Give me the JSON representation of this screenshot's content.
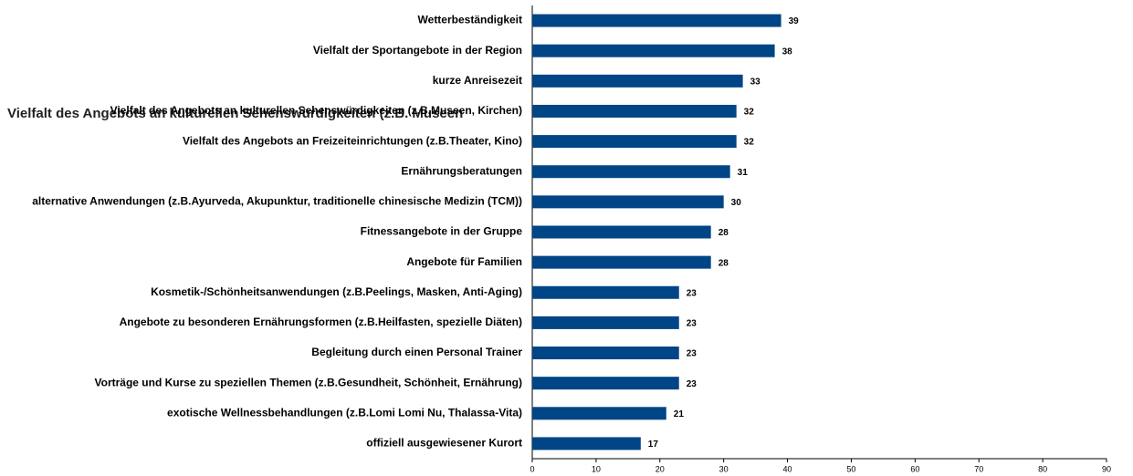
{
  "chart_data": {
    "type": "barh",
    "annotation": "Vielfalt des Angebots an kulturellen Sehenswürdigkeiten (z.B. Museen",
    "categories": [
      "Wetterbeständigkeit",
      "Vielfalt der Sportangebote in der Region",
      "kurze Anreisezeit",
      "Vielfalt des Angebots an kulturellen Sehenswürdigkeiten (z.B.Museen, Kirchen)",
      "Vielfalt des Angebots an Freizeiteinrichtungen (z.B.Theater, Kino)",
      "Ernährungsberatungen",
      "alternative Anwendungen (z.B.Ayurveda, Akupunktur, traditionelle chinesische Medizin (TCM))",
      "Fitnessangebote in der Gruppe",
      "Angebote für Familien",
      "Kosmetik-/Schönheitsanwendungen (z.B.Peelings, Masken, Anti-Aging)",
      "Angebote zu besonderen Ernährungsformen (z.B.Heilfasten, spezielle Diäten)",
      "Begleitung durch einen Personal Trainer",
      "Vorträge und Kurse zu speziellen Themen (z.B.Gesundheit, Schönheit, Ernährung)",
      "exotische Wellnessbehandlungen (z.B.Lomi Lomi Nu, Thalassa-Vita)",
      "offiziell ausgewiesener Kurort"
    ],
    "values": [
      39,
      38,
      33,
      32,
      32,
      31,
      30,
      28,
      28,
      23,
      23,
      23,
      23,
      21,
      17
    ],
    "color": "#004586",
    "xlim": [
      0,
      90
    ],
    "xticks": [
      0,
      10,
      20,
      30,
      40,
      50,
      60,
      70,
      80,
      90
    ]
  }
}
